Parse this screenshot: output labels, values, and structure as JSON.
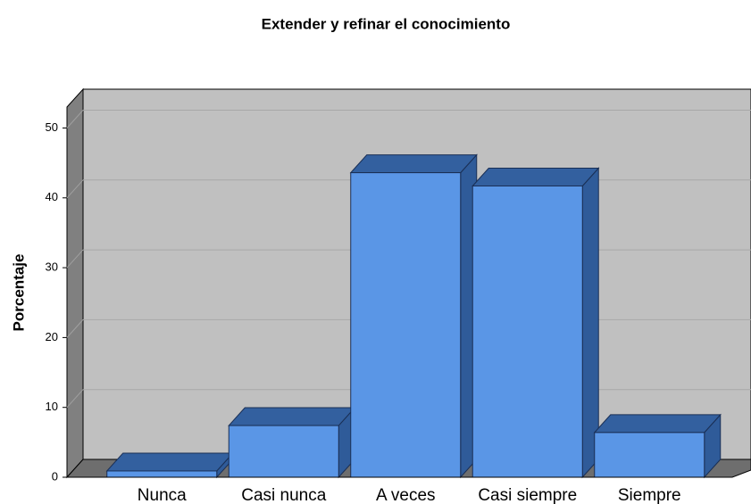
{
  "chart_data": {
    "type": "bar3d",
    "title": "Extender y refinar el conocimiento",
    "y_label": "Porcentaje",
    "categories": [
      "Nunca",
      "Casi nunca",
      "A veces",
      "Casi siempre",
      "Siempre"
    ],
    "values": [
      0.9,
      7.4,
      43.6,
      41.7,
      6.4
    ],
    "color": "#5a96e6",
    "ylim": [
      0,
      53
    ],
    "yticks": [
      0,
      10,
      20,
      30,
      40,
      50
    ],
    "grid": true
  }
}
